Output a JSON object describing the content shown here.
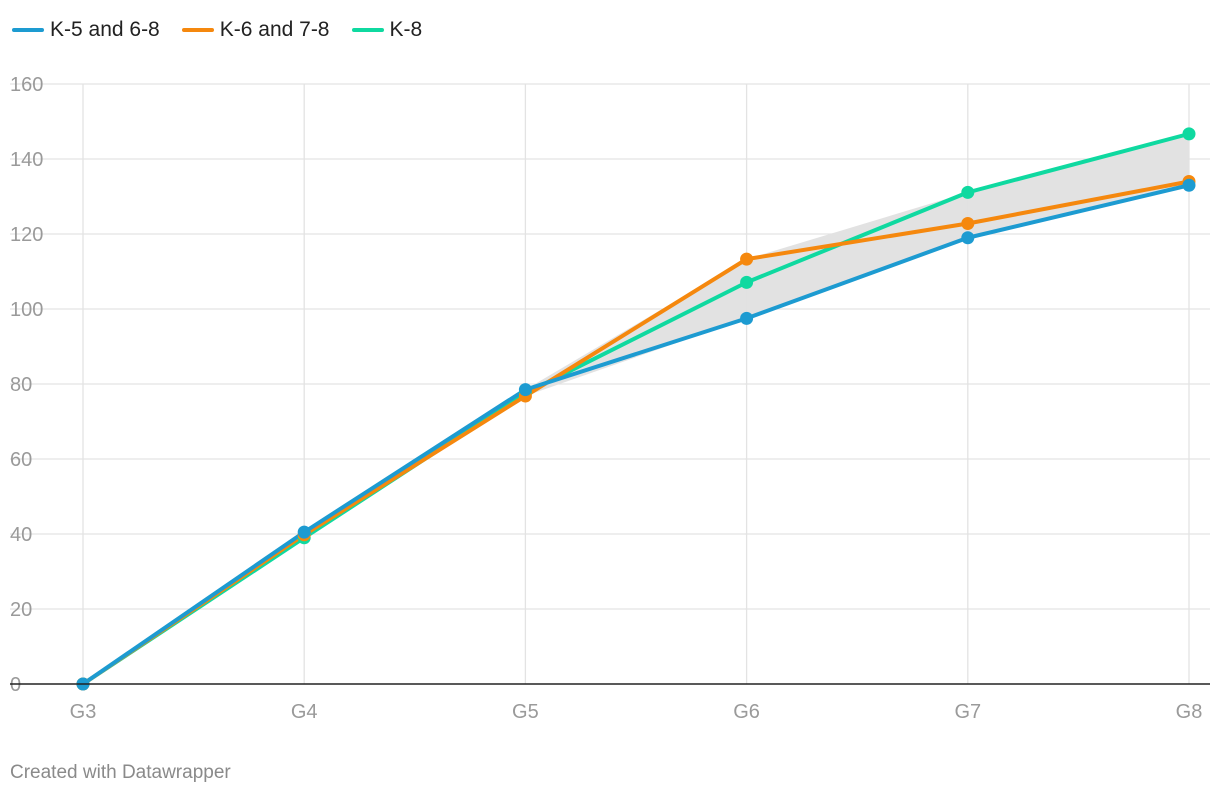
{
  "chart_data": {
    "type": "line",
    "categories": [
      "G3",
      "G4",
      "G5",
      "G6",
      "G7",
      "G8"
    ],
    "series": [
      {
        "name": "K-5 and 6-8",
        "color": "#1d9bd1",
        "values": [
          0,
          40.5,
          78.5,
          97.5,
          119,
          133
        ]
      },
      {
        "name": "K-6 and 7-8",
        "color": "#f5880e",
        "values": [
          0,
          39.8,
          76.8,
          113.3,
          122.8,
          134
        ]
      },
      {
        "name": "K-8",
        "color": "#0fd9a0",
        "values": [
          0,
          39,
          77.5,
          107.1,
          131.1,
          146.7
        ]
      }
    ],
    "ylim": [
      0,
      160
    ],
    "yticks": [
      0,
      20,
      40,
      60,
      80,
      100,
      120,
      140,
      160
    ],
    "band_color": "#e0e0e0",
    "grid": true,
    "legend_position": "top-left"
  },
  "footer": {
    "credit": "Created with Datawrapper"
  }
}
